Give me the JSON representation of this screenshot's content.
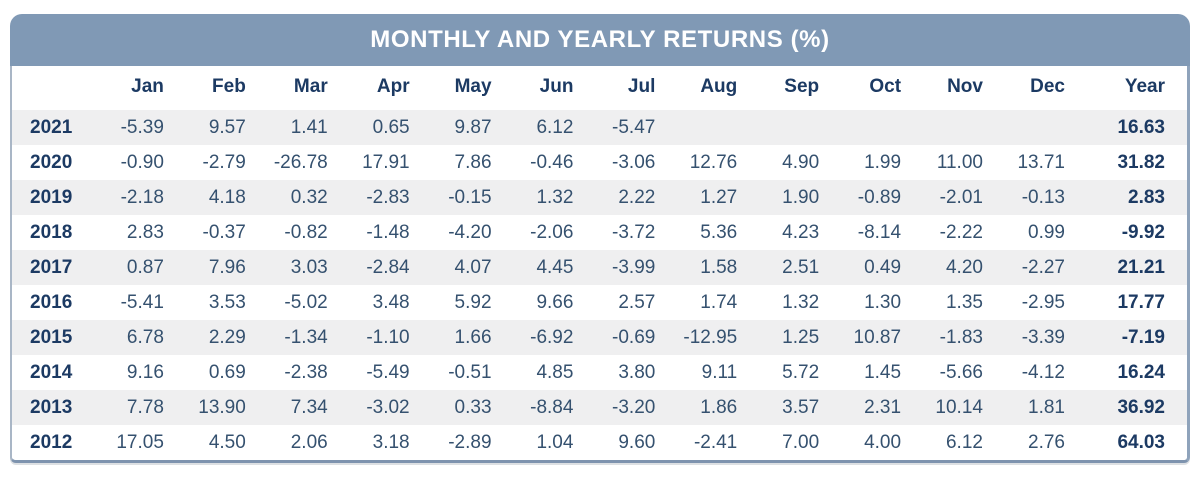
{
  "title": "MONTHLY AND YEARLY RETURNS (%)",
  "colors": {
    "header_bg": "#8099B5",
    "header_text": "#FFFFFF",
    "label_text": "#1C3A63",
    "cell_text": "#35516F",
    "stripe_bg": "#EFEFF0",
    "border_side": "#A9B6C6",
    "border_bottom": "#7E93AE"
  },
  "chart_data": {
    "type": "table",
    "title": "MONTHLY AND YEARLY RETURNS (%)",
    "columns": [
      "",
      "Jan",
      "Feb",
      "Mar",
      "Apr",
      "May",
      "Jun",
      "Jul",
      "Aug",
      "Sep",
      "Oct",
      "Nov",
      "Dec",
      "Year"
    ],
    "rows": [
      {
        "label": "2021",
        "values": [
          "-5.39",
          "9.57",
          "1.41",
          "0.65",
          "9.87",
          "6.12",
          "-5.47",
          "",
          "",
          "",
          "",
          "",
          "16.63"
        ]
      },
      {
        "label": "2020",
        "values": [
          "-0.90",
          "-2.79",
          "-26.78",
          "17.91",
          "7.86",
          "-0.46",
          "-3.06",
          "12.76",
          "4.90",
          "1.99",
          "11.00",
          "13.71",
          "31.82"
        ]
      },
      {
        "label": "2019",
        "values": [
          "-2.18",
          "4.18",
          "0.32",
          "-2.83",
          "-0.15",
          "1.32",
          "2.22",
          "1.27",
          "1.90",
          "-0.89",
          "-2.01",
          "-0.13",
          "2.83"
        ]
      },
      {
        "label": "2018",
        "values": [
          "2.83",
          "-0.37",
          "-0.82",
          "-1.48",
          "-4.20",
          "-2.06",
          "-3.72",
          "5.36",
          "4.23",
          "-8.14",
          "-2.22",
          "0.99",
          "-9.92"
        ]
      },
      {
        "label": "2017",
        "values": [
          "0.87",
          "7.96",
          "3.03",
          "-2.84",
          "4.07",
          "4.45",
          "-3.99",
          "1.58",
          "2.51",
          "0.49",
          "4.20",
          "-2.27",
          "21.21"
        ]
      },
      {
        "label": "2016",
        "values": [
          "-5.41",
          "3.53",
          "-5.02",
          "3.48",
          "5.92",
          "9.66",
          "2.57",
          "1.74",
          "1.32",
          "1.30",
          "1.35",
          "-2.95",
          "17.77"
        ]
      },
      {
        "label": "2015",
        "values": [
          "6.78",
          "2.29",
          "-1.34",
          "-1.10",
          "1.66",
          "-6.92",
          "-0.69",
          "-12.95",
          "1.25",
          "10.87",
          "-1.83",
          "-3.39",
          "-7.19"
        ]
      },
      {
        "label": "2014",
        "values": [
          "9.16",
          "0.69",
          "-2.38",
          "-5.49",
          "-0.51",
          "4.85",
          "3.80",
          "9.11",
          "5.72",
          "1.45",
          "-5.66",
          "-4.12",
          "16.24"
        ]
      },
      {
        "label": "2013",
        "values": [
          "7.78",
          "13.90",
          "7.34",
          "-3.02",
          "0.33",
          "-8.84",
          "-3.20",
          "1.86",
          "3.57",
          "2.31",
          "10.14",
          "1.81",
          "36.92"
        ]
      },
      {
        "label": "2012",
        "values": [
          "17.05",
          "4.50",
          "2.06",
          "3.18",
          "-2.89",
          "1.04",
          "9.60",
          "-2.41",
          "7.00",
          "4.00",
          "6.12",
          "2.76",
          "64.03"
        ]
      }
    ]
  }
}
